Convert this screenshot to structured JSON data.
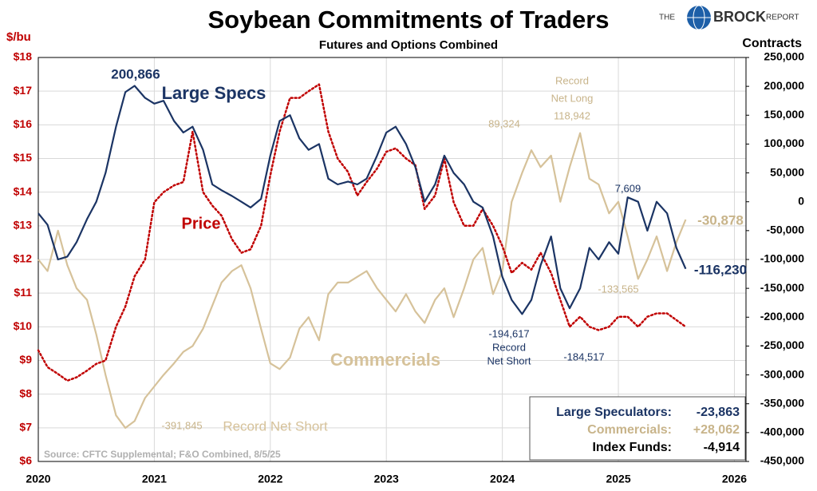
{
  "chart_data": {
    "type": "line",
    "title": "Soybean Commitments of Traders",
    "subtitle": "Futures and Options Combined",
    "y_label": "$/bu",
    "y2_label": "Contracts",
    "logo": {
      "pre": "THE",
      "name": "BROCK",
      "post": "REPORT"
    },
    "grid": true,
    "xlim": [
      2020,
      2026.1
    ],
    "xticks": [
      2020,
      2021,
      2022,
      2023,
      2024,
      2025,
      2026
    ],
    "ylim": [
      6,
      18
    ],
    "yticks": [
      {
        "value": 6,
        "label": "$6"
      },
      {
        "value": 7,
        "label": "$7"
      },
      {
        "value": 8,
        "label": "$8"
      },
      {
        "value": 9,
        "label": "$9"
      },
      {
        "value": 10,
        "label": "$10"
      },
      {
        "value": 11,
        "label": "$11"
      },
      {
        "value": 12,
        "label": "$12"
      },
      {
        "value": 13,
        "label": "$13"
      },
      {
        "value": 14,
        "label": "$14"
      },
      {
        "value": 15,
        "label": "$15"
      },
      {
        "value": 16,
        "label": "$16"
      },
      {
        "value": 17,
        "label": "$17"
      },
      {
        "value": 18,
        "label": "$18"
      }
    ],
    "y2lim": [
      -450000,
      250000
    ],
    "y2ticks": [
      {
        "value": 250000,
        "label": "250,000"
      },
      {
        "value": 200000,
        "label": "200,000"
      },
      {
        "value": 150000,
        "label": "150,000"
      },
      {
        "value": 100000,
        "label": "100,000"
      },
      {
        "value": 50000,
        "label": "50,000"
      },
      0,
      {
        "value": -50000,
        "label": "-50,000"
      },
      {
        "value": -100000,
        "label": "-100,000"
      },
      {
        "value": -150000,
        "label": "-150,000"
      },
      {
        "value": -200000,
        "label": "-200,000"
      },
      {
        "value": -250000,
        "label": "-250,000"
      },
      {
        "value": -300000,
        "label": "-300,000"
      },
      {
        "value": -350000,
        "label": "-350,000"
      },
      {
        "value": -400000,
        "label": "-400,000"
      },
      {
        "value": -450000,
        "label": "-450,000"
      }
    ],
    "x": [
      2020,
      2020.08,
      2020.17,
      2020.25,
      2020.33,
      2020.42,
      2020.5,
      2020.58,
      2020.67,
      2020.75,
      2020.83,
      2020.92,
      2021,
      2021.08,
      2021.17,
      2021.25,
      2021.33,
      2021.42,
      2021.5,
      2021.58,
      2021.67,
      2021.75,
      2021.83,
      2021.92,
      2022,
      2022.08,
      2022.17,
      2022.25,
      2022.33,
      2022.42,
      2022.5,
      2022.58,
      2022.67,
      2022.75,
      2022.83,
      2022.92,
      2023,
      2023.08,
      2023.17,
      2023.25,
      2023.33,
      2023.42,
      2023.5,
      2023.58,
      2023.67,
      2023.75,
      2023.83,
      2023.92,
      2024,
      2024.08,
      2024.17,
      2024.25,
      2024.33,
      2024.42,
      2024.5,
      2024.58,
      2024.67,
      2024.75,
      2024.83,
      2024.92,
      2025,
      2025.08,
      2025.17,
      2025.25,
      2025.33,
      2025.42,
      2025.5,
      2025.58
    ],
    "series": [
      {
        "name": "Large Specs",
        "color": "#1b3464",
        "axis": "y2",
        "style": "solid",
        "values": [
          -20000,
          -40000,
          -100000,
          -95000,
          -70000,
          -30000,
          0,
          50000,
          130000,
          190000,
          200866,
          180000,
          170000,
          175000,
          140000,
          120000,
          130000,
          90000,
          30000,
          20000,
          10000,
          0,
          -10000,
          5000,
          80000,
          140000,
          150000,
          110000,
          90000,
          100000,
          40000,
          30000,
          35000,
          30000,
          40000,
          80000,
          120000,
          130000,
          100000,
          60000,
          0,
          30000,
          80000,
          50000,
          30000,
          0,
          -10000,
          -60000,
          -130000,
          -170000,
          -194617,
          -170000,
          -110000,
          -60000,
          -150000,
          -184517,
          -150000,
          -80000,
          -100000,
          -70000,
          -90000,
          7609,
          0,
          -50000,
          0,
          -20000,
          -80000,
          -116230
        ]
      },
      {
        "name": "Commercials",
        "color": "#d6c29a",
        "axis": "y2",
        "style": "solid",
        "values": [
          -100000,
          -120000,
          -50000,
          -110000,
          -150000,
          -170000,
          -230000,
          -300000,
          -370000,
          -391845,
          -380000,
          -340000,
          -320000,
          -300000,
          -280000,
          -260000,
          -250000,
          -220000,
          -180000,
          -140000,
          -120000,
          -110000,
          -150000,
          -220000,
          -280000,
          -290000,
          -270000,
          -220000,
          -200000,
          -240000,
          -160000,
          -140000,
          -140000,
          -130000,
          -120000,
          -150000,
          -170000,
          -190000,
          -160000,
          -190000,
          -210000,
          -170000,
          -150000,
          -200000,
          -150000,
          -100000,
          -80000,
          -160000,
          -120000,
          0,
          50000,
          89324,
          60000,
          80000,
          0,
          60000,
          118942,
          40000,
          30000,
          -20000,
          0,
          -60000,
          -133565,
          -100000,
          -60000,
          -120000,
          -70000,
          -30878
        ]
      },
      {
        "name": "Price",
        "color": "#c00000",
        "axis": "y",
        "style": "dotted",
        "values": [
          9.3,
          8.8,
          8.6,
          8.4,
          8.5,
          8.7,
          8.9,
          9.0,
          10.0,
          10.6,
          11.5,
          12.0,
          13.7,
          14.0,
          14.2,
          14.3,
          15.8,
          14.0,
          13.6,
          13.3,
          12.6,
          12.2,
          12.3,
          13.0,
          14.5,
          15.8,
          16.8,
          16.8,
          17.0,
          17.2,
          15.8,
          15.0,
          14.6,
          13.9,
          14.3,
          14.7,
          15.2,
          15.3,
          15.0,
          14.8,
          13.5,
          13.9,
          15.0,
          13.7,
          13.0,
          13.0,
          13.5,
          13.0,
          12.4,
          11.6,
          11.9,
          11.7,
          12.2,
          11.6,
          10.8,
          10.0,
          10.3,
          10.0,
          9.9,
          10.0,
          10.3,
          10.3,
          10.0,
          10.3,
          10.4,
          10.4,
          10.2,
          10.0
        ]
      }
    ],
    "annotations": [
      {
        "text": "200,866",
        "color": "#1b3464"
      },
      {
        "text": "Large Specs",
        "color": "#1b3464"
      },
      {
        "text": "Price",
        "color": "#c00000"
      },
      {
        "text": "Commercials",
        "color": "#d6c29a"
      },
      {
        "text": "-391,845",
        "color": "#c8b48a"
      },
      {
        "text": "Record Net Short",
        "color": "#d6c29a"
      },
      {
        "text": "89,324",
        "color": "#c8b48a"
      },
      {
        "text": "Record",
        "color": "#c8b48a"
      },
      {
        "text": "Net Long",
        "color": "#c8b48a"
      },
      {
        "text": "118,942",
        "color": "#c8b48a"
      },
      {
        "text": "7,609",
        "color": "#1b3464"
      },
      {
        "text": "-194,617",
        "color": "#1b3464"
      },
      {
        "text": "Record",
        "color": "#1b3464"
      },
      {
        "text": "Net Short",
        "color": "#1b3464"
      },
      {
        "text": "-184,517",
        "color": "#1b3464"
      },
      {
        "text": "-133,565",
        "color": "#c8b48a"
      },
      {
        "text": "-30,878",
        "color": "#c8b48a"
      },
      {
        "text": "-116,230",
        "color": "#1b3464"
      },
      {
        "text": "Source: CFTC Supplemental; F&O Combined, 8/5/25",
        "color": "#b0b0b0"
      }
    ],
    "summary": [
      {
        "label": "Large Speculators:",
        "value": "-23,863",
        "color": "#1b3464"
      },
      {
        "label": "Commercials:",
        "value": "+28,062",
        "color": "#c8b48a"
      },
      {
        "label": "Index Funds:",
        "value": "-4,914",
        "color": "#000000"
      }
    ]
  }
}
